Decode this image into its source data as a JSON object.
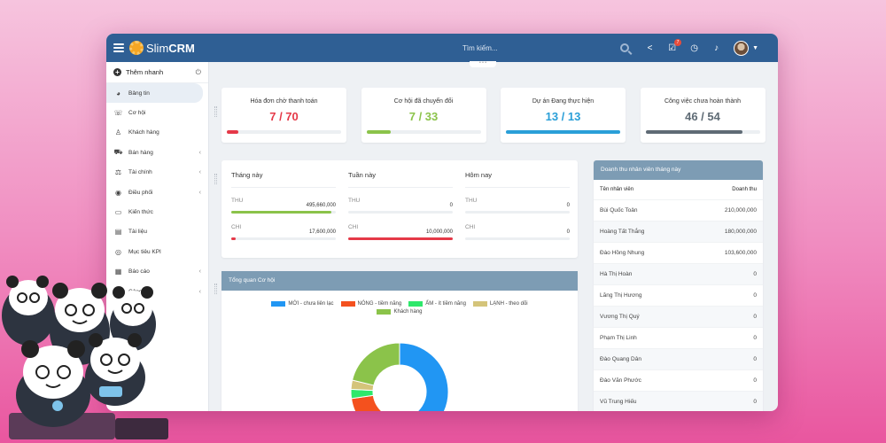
{
  "app": {
    "logo_prefix": "Slim",
    "logo_suffix": "CRM",
    "search_placeholder": "Tìm kiếm...",
    "notif_count": "7"
  },
  "sidebar": {
    "quick_add": "Thêm nhanh",
    "items": [
      {
        "label": "Bảng tin",
        "icon": "dashboard-icon",
        "active": true,
        "arrow": false
      },
      {
        "label": "Cơ hội",
        "icon": "phone-icon",
        "active": false,
        "arrow": false
      },
      {
        "label": "Khách hàng",
        "icon": "user-icon",
        "active": false,
        "arrow": false
      },
      {
        "label": "Bán hàng",
        "icon": "cart-icon",
        "active": false,
        "arrow": true
      },
      {
        "label": "Tài chính",
        "icon": "scale-icon",
        "active": false,
        "arrow": true
      },
      {
        "label": "Điều phối",
        "icon": "eye-icon",
        "active": false,
        "arrow": true
      },
      {
        "label": "Kiến thức",
        "icon": "folder-icon",
        "active": false,
        "arrow": false
      },
      {
        "label": "Tài liệu",
        "icon": "document-icon",
        "active": false,
        "arrow": false
      },
      {
        "label": "Mục tiêu KPI",
        "icon": "target-icon",
        "active": false,
        "arrow": false
      },
      {
        "label": "Báo cáo",
        "icon": "chart-icon",
        "active": false,
        "arrow": true
      },
      {
        "label": "Công cụ",
        "icon": "wrench-icon",
        "active": false,
        "arrow": true
      }
    ]
  },
  "kpis": [
    {
      "title": "Hóa đơn chờ thanh toán",
      "value": "7 / 70",
      "color": "#e53948",
      "progress": 0.1
    },
    {
      "title": "Cơ hội đã chuyển đổi",
      "value": "7 / 33",
      "color": "#8bc34a",
      "progress": 0.21
    },
    {
      "title": "Dự án Đang thực hiện",
      "value": "13 / 13",
      "color": "#2a9fd8",
      "progress": 1.0
    },
    {
      "title": "Công việc chưa hoàn thành",
      "value": "46 / 54",
      "color": "#5f6b75",
      "progress": 0.85
    }
  ],
  "finance": {
    "periods": [
      {
        "title": "Tháng này",
        "thu_label": "THU",
        "thu_value": "495,660,000",
        "thu_progress": 0.96,
        "chi_label": "CHI",
        "chi_value": "17,600,000",
        "chi_progress": 0.04
      },
      {
        "title": "Tuần này",
        "thu_label": "THU",
        "thu_value": "0",
        "thu_progress": 0,
        "chi_label": "CHI",
        "chi_value": "10,000,000",
        "chi_progress": 1.0
      },
      {
        "title": "Hôm nay",
        "thu_label": "THU",
        "thu_value": "0",
        "thu_progress": 0,
        "chi_label": "CHI",
        "chi_value": "0",
        "chi_progress": 0
      }
    ]
  },
  "opportunities": {
    "title": "Tổng quan Cơ hội",
    "legend": [
      {
        "label": "MỚI - chưa liên lạc",
        "color": "#2196f3"
      },
      {
        "label": "NÓNG - tiềm năng",
        "color": "#f4511e"
      },
      {
        "label": "ẤM - ít tiềm năng",
        "color": "#2ee86b"
      },
      {
        "label": "LẠNH - theo dõi",
        "color": "#d4c47a"
      },
      {
        "label": "Khách hàng",
        "color": "#8bc34a"
      }
    ]
  },
  "chart_data": {
    "type": "pie",
    "labels": [
      "MỚI - chưa liên lạc",
      "NÓNG - tiềm năng",
      "ẤM - ít tiềm năng",
      "LẠNH - theo dõi",
      "Khách hàng"
    ],
    "values": [
      15,
      9,
      1,
      1,
      7
    ],
    "colors": [
      "#2196f3",
      "#f4511e",
      "#2ee86b",
      "#d4c47a",
      "#8bc34a"
    ],
    "title": "Tổng quan Cơ hội"
  },
  "revenue": {
    "title": "Doanh thu nhân viên tháng này",
    "col_name": "Tên nhân viên",
    "col_revenue": "Doanh thu",
    "rows": [
      {
        "name": "Bùi Quốc Toản",
        "revenue": "210,000,000"
      },
      {
        "name": "Hoàng Tất Thắng",
        "revenue": "180,000,000"
      },
      {
        "name": "Đào Hồng Nhung",
        "revenue": "103,600,000"
      },
      {
        "name": "Hà Thị Hoàn",
        "revenue": "0"
      },
      {
        "name": "Lăng Thị Hương",
        "revenue": "0"
      },
      {
        "name": "Vương Thị Quý",
        "revenue": "0"
      },
      {
        "name": "Phạm Thị Linh",
        "revenue": "0"
      },
      {
        "name": "Đào Quang Dân",
        "revenue": "0"
      },
      {
        "name": "Đào Văn Phước",
        "revenue": "0"
      },
      {
        "name": "Vũ Trung Hiếu",
        "revenue": "0"
      }
    ]
  }
}
